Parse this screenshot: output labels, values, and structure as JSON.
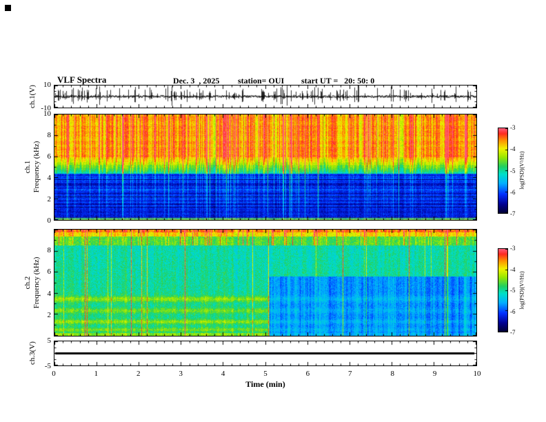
{
  "header": {
    "title": "VLF Spectra",
    "date": "Dec. 3  , 2025",
    "station": "station= OUI",
    "start_ut": "start UT =   20: 50: 0"
  },
  "axes": {
    "time": {
      "label": "Time (min)",
      "min": 0,
      "max": 10,
      "ticks": [
        "0",
        "1",
        "2",
        "3",
        "4",
        "5",
        "6",
        "7",
        "8",
        "9",
        "10"
      ]
    },
    "ch1_wave": {
      "ylabel": "ch.1(V)",
      "min": -10,
      "max": 10,
      "ticks": [
        "10",
        "-10"
      ]
    },
    "ch1_spec": {
      "ylabel_line1": "ch.1",
      "ylabel_line2": "Frequency (kHz)",
      "min": 0,
      "max": 10,
      "ticks": [
        "10",
        "8",
        "6",
        "4",
        "2",
        "0"
      ]
    },
    "ch2_spec": {
      "ylabel_line1": "ch.2",
      "ylabel_line2": "Frequency (kHz)",
      "min": 0,
      "max": 10,
      "ticks": [
        "8",
        "6",
        "4",
        "2"
      ]
    },
    "ch3_wave": {
      "ylabel": "ch.3(V)",
      "min": -5,
      "max": 5,
      "ticks": [
        "5",
        "-5"
      ]
    }
  },
  "colorbars": [
    {
      "label": "log(PSD)(V²/Hz)",
      "min": -7,
      "max": -3,
      "ticks": [
        "-3",
        "-4",
        "-5",
        "-6",
        "-7"
      ]
    },
    {
      "label": "log(PSD)(V²/Hz)",
      "min": -7,
      "max": -3,
      "ticks": [
        "-3",
        "-4",
        "-5",
        "-6",
        "-7"
      ]
    }
  ],
  "colormap": {
    "name": "jet-like rainbow",
    "stops": [
      {
        "v": 0.0,
        "color": "#000038"
      },
      {
        "v": 0.1,
        "color": "#000090"
      },
      {
        "v": 0.22,
        "color": "#0030ff"
      },
      {
        "v": 0.35,
        "color": "#00b0ff"
      },
      {
        "v": 0.46,
        "color": "#00e0c8"
      },
      {
        "v": 0.55,
        "color": "#22d060"
      },
      {
        "v": 0.66,
        "color": "#9ae800"
      },
      {
        "v": 0.76,
        "color": "#f2f200"
      },
      {
        "v": 0.86,
        "color": "#ff9000"
      },
      {
        "v": 0.94,
        "color": "#ff2a20"
      },
      {
        "v": 1.0,
        "color": "#ff5a78"
      }
    ]
  },
  "chart_data": [
    {
      "type": "line",
      "panel": "ch.1 voltage waveform",
      "xlabel": "Time (min)",
      "x_range": [
        0,
        10
      ],
      "ylabel": "ch.1(V)",
      "y_range": [
        -10,
        10
      ],
      "description": "Noisy broadband waveform centered on 0 V with frequent impulsive spikes (sferics) reaching up to ±10 V throughout the 10-minute record."
    },
    {
      "type": "heatmap",
      "panel": "ch.1 spectrogram",
      "xlabel": "Time (min)",
      "x_range": [
        0,
        10
      ],
      "ylabel": "Frequency (kHz)",
      "y_range": [
        0,
        10
      ],
      "zlabel": "log(PSD)(V²/Hz)",
      "z_range": [
        -7,
        -3
      ],
      "features": [
        "High power band (log PSD ~ -3 to -3.5, red/orange) from ~6 to 10 kHz with dense vertical sferic striations",
        "Moderate power transition band (~ -4.5, green/yellow) between ~4.4 and 6 kHz",
        "Low power region (~ -6 to -7, blue/dark blue) below ~4.4 kHz with horizontal line structure",
        "Vertical green/cyan streaks from strong sferics penetrating the low-frequency blue region",
        "Thin enhanced green/yellow horizontal lines near 0-1 kHz"
      ]
    },
    {
      "type": "heatmap",
      "panel": "ch.2 spectrogram",
      "xlabel": "Time (min)",
      "x_range": [
        0,
        10
      ],
      "ylabel": "Frequency (kHz)",
      "y_range": [
        0,
        10
      ],
      "zlabel": "log(PSD)(V²/Hz)",
      "z_range": [
        -7,
        -3
      ],
      "features": [
        "Moderate power speckled green background (~ -5) over most of the band",
        "Red/orange striated band near 9.3-10 kHz",
        "Enhanced yellow horizontal bands near ~0.5, 1.3, 2.3 and 3.4 kHz during the first ~5 minutes",
        "After ~5.1 min the region below ~5.6 kHz drops to low power (blue, ~ -6 to -6.5) with vertical striations",
        "Occasional strong vertical sferic streaks spanning all frequencies"
      ]
    },
    {
      "type": "line",
      "panel": "ch.3 voltage",
      "xlabel": "Time (min)",
      "x_range": [
        0,
        10
      ],
      "ylabel": "ch.3(V)",
      "y_range": [
        -5,
        5
      ],
      "description": "Flat thick line at 0 V for the entire 10 minutes (quiet channel)."
    }
  ]
}
